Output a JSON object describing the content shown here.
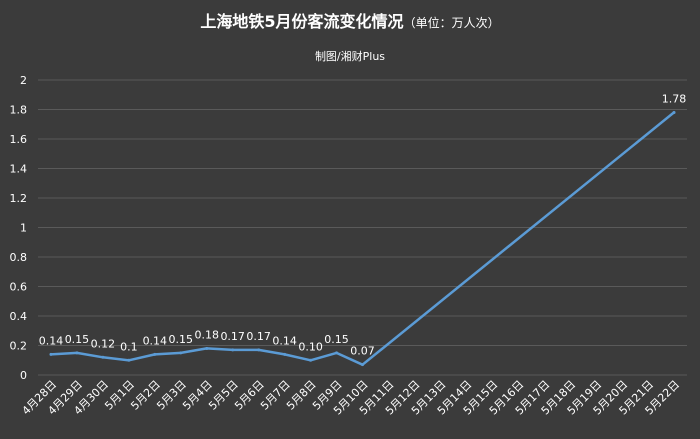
{
  "chart_data": {
    "type": "line",
    "title": "上海地铁5月份客流变化情况",
    "title_unit": "（单位：万人次）",
    "subtitle": "制图/湘财Plus",
    "categories": [
      "4月28日",
      "4月29日",
      "4月30日",
      "5月1日",
      "5月2日",
      "5月3日",
      "5月4日",
      "5月5日",
      "5月6日",
      "5月7日",
      "5月8日",
      "5月9日",
      "5月10日",
      "5月11日",
      "5月12日",
      "5月13日",
      "5月14日",
      "5月15日",
      "5月16日",
      "5月17日",
      "5月18日",
      "5月19日",
      "5月20日",
      "5月21日",
      "5月22日"
    ],
    "series": [
      {
        "values": [
          0.14,
          0.15,
          0.12,
          0.1,
          0.14,
          0.15,
          0.18,
          0.17,
          0.17,
          0.14,
          0.1,
          0.15,
          0.07,
          null,
          null,
          null,
          null,
          null,
          null,
          null,
          null,
          null,
          null,
          null,
          1.78
        ],
        "data_labels": [
          "0.14",
          "0.15",
          "0.12",
          "0.1",
          "0.14",
          "0.15",
          "0.18",
          "0.17",
          "0.17",
          "0.14",
          "0.10",
          "0.15",
          "0.07",
          null,
          null,
          null,
          null,
          null,
          null,
          null,
          null,
          null,
          null,
          null,
          "1.78"
        ],
        "color": "#5b9bd5",
        "connect_gaps": true
      }
    ],
    "ylim": [
      0,
      2
    ],
    "yticks": [
      "0",
      "0.2",
      "0.4",
      "0.6",
      "0.8",
      "1",
      "1.2",
      "1.4",
      "1.6",
      "1.8",
      "2"
    ],
    "grid": true,
    "legend": "none"
  },
  "colors": {
    "background": "#3b3b3b",
    "grid": "#5a5a5a",
    "text": "#ffffff",
    "line": "#5b9bd5"
  }
}
